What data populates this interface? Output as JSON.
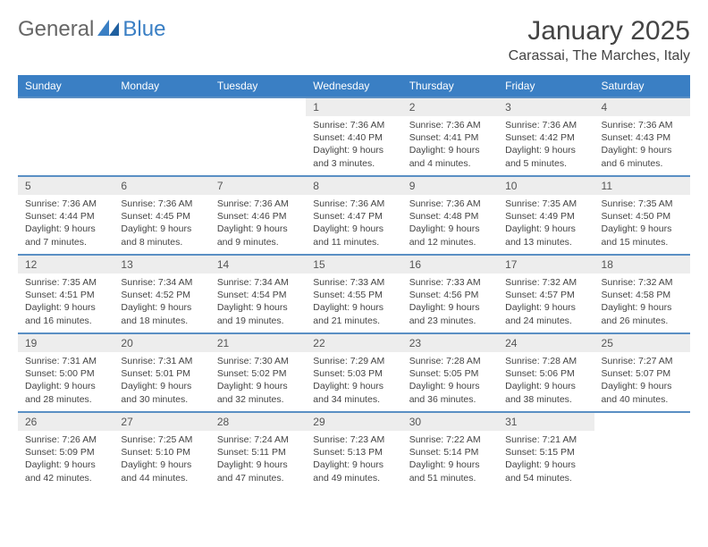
{
  "logo": {
    "part1": "General",
    "part2": "Blue"
  },
  "title": "January 2025",
  "location": "Carassai, The Marches, Italy",
  "colors": {
    "header_bg": "#3a7fc4",
    "header_text": "#ffffff",
    "daynum_bg": "#ededed",
    "row_divider": "#5a8fc4",
    "body_text": "#444444"
  },
  "weekdays": [
    "Sunday",
    "Monday",
    "Tuesday",
    "Wednesday",
    "Thursday",
    "Friday",
    "Saturday"
  ],
  "weeks": [
    [
      null,
      null,
      null,
      {
        "n": "1",
        "sr": "7:36 AM",
        "ss": "4:40 PM",
        "dl": "9 hours and 3 minutes."
      },
      {
        "n": "2",
        "sr": "7:36 AM",
        "ss": "4:41 PM",
        "dl": "9 hours and 4 minutes."
      },
      {
        "n": "3",
        "sr": "7:36 AM",
        "ss": "4:42 PM",
        "dl": "9 hours and 5 minutes."
      },
      {
        "n": "4",
        "sr": "7:36 AM",
        "ss": "4:43 PM",
        "dl": "9 hours and 6 minutes."
      }
    ],
    [
      {
        "n": "5",
        "sr": "7:36 AM",
        "ss": "4:44 PM",
        "dl": "9 hours and 7 minutes."
      },
      {
        "n": "6",
        "sr": "7:36 AM",
        "ss": "4:45 PM",
        "dl": "9 hours and 8 minutes."
      },
      {
        "n": "7",
        "sr": "7:36 AM",
        "ss": "4:46 PM",
        "dl": "9 hours and 9 minutes."
      },
      {
        "n": "8",
        "sr": "7:36 AM",
        "ss": "4:47 PM",
        "dl": "9 hours and 11 minutes."
      },
      {
        "n": "9",
        "sr": "7:36 AM",
        "ss": "4:48 PM",
        "dl": "9 hours and 12 minutes."
      },
      {
        "n": "10",
        "sr": "7:35 AM",
        "ss": "4:49 PM",
        "dl": "9 hours and 13 minutes."
      },
      {
        "n": "11",
        "sr": "7:35 AM",
        "ss": "4:50 PM",
        "dl": "9 hours and 15 minutes."
      }
    ],
    [
      {
        "n": "12",
        "sr": "7:35 AM",
        "ss": "4:51 PM",
        "dl": "9 hours and 16 minutes."
      },
      {
        "n": "13",
        "sr": "7:34 AM",
        "ss": "4:52 PM",
        "dl": "9 hours and 18 minutes."
      },
      {
        "n": "14",
        "sr": "7:34 AM",
        "ss": "4:54 PM",
        "dl": "9 hours and 19 minutes."
      },
      {
        "n": "15",
        "sr": "7:33 AM",
        "ss": "4:55 PM",
        "dl": "9 hours and 21 minutes."
      },
      {
        "n": "16",
        "sr": "7:33 AM",
        "ss": "4:56 PM",
        "dl": "9 hours and 23 minutes."
      },
      {
        "n": "17",
        "sr": "7:32 AM",
        "ss": "4:57 PM",
        "dl": "9 hours and 24 minutes."
      },
      {
        "n": "18",
        "sr": "7:32 AM",
        "ss": "4:58 PM",
        "dl": "9 hours and 26 minutes."
      }
    ],
    [
      {
        "n": "19",
        "sr": "7:31 AM",
        "ss": "5:00 PM",
        "dl": "9 hours and 28 minutes."
      },
      {
        "n": "20",
        "sr": "7:31 AM",
        "ss": "5:01 PM",
        "dl": "9 hours and 30 minutes."
      },
      {
        "n": "21",
        "sr": "7:30 AM",
        "ss": "5:02 PM",
        "dl": "9 hours and 32 minutes."
      },
      {
        "n": "22",
        "sr": "7:29 AM",
        "ss": "5:03 PM",
        "dl": "9 hours and 34 minutes."
      },
      {
        "n": "23",
        "sr": "7:28 AM",
        "ss": "5:05 PM",
        "dl": "9 hours and 36 minutes."
      },
      {
        "n": "24",
        "sr": "7:28 AM",
        "ss": "5:06 PM",
        "dl": "9 hours and 38 minutes."
      },
      {
        "n": "25",
        "sr": "7:27 AM",
        "ss": "5:07 PM",
        "dl": "9 hours and 40 minutes."
      }
    ],
    [
      {
        "n": "26",
        "sr": "7:26 AM",
        "ss": "5:09 PM",
        "dl": "9 hours and 42 minutes."
      },
      {
        "n": "27",
        "sr": "7:25 AM",
        "ss": "5:10 PM",
        "dl": "9 hours and 44 minutes."
      },
      {
        "n": "28",
        "sr": "7:24 AM",
        "ss": "5:11 PM",
        "dl": "9 hours and 47 minutes."
      },
      {
        "n": "29",
        "sr": "7:23 AM",
        "ss": "5:13 PM",
        "dl": "9 hours and 49 minutes."
      },
      {
        "n": "30",
        "sr": "7:22 AM",
        "ss": "5:14 PM",
        "dl": "9 hours and 51 minutes."
      },
      {
        "n": "31",
        "sr": "7:21 AM",
        "ss": "5:15 PM",
        "dl": "9 hours and 54 minutes."
      },
      null
    ]
  ],
  "labels": {
    "sunrise": "Sunrise: ",
    "sunset": "Sunset: ",
    "daylight": "Daylight: "
  }
}
